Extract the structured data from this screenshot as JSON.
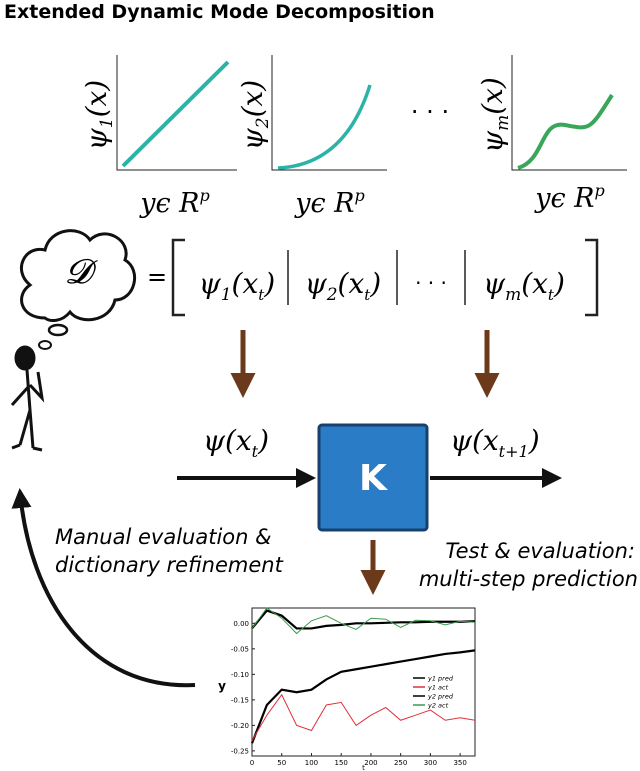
{
  "title": "Extended Dynamic Mode Decomposition",
  "basis_plots": [
    {
      "label": {
        "base": "ψ",
        "sub": "1",
        "arg": "(x)"
      },
      "xlabel": {
        "base": "yϵ R",
        "sup": "p"
      }
    },
    {
      "label": {
        "base": "ψ",
        "sub": "2",
        "arg": "(x)"
      },
      "xlabel": {
        "base": "yϵ R",
        "sup": "p"
      }
    },
    {
      "label": {
        "base": "ψ",
        "sub": "m",
        "arg": "(x)"
      },
      "xlabel": {
        "base": "yϵ R",
        "sup": "p"
      }
    }
  ],
  "ellipsis": "· · ·",
  "dictionary": {
    "symbol": "𝓓",
    "equals": "=",
    "entries": [
      {
        "base": "ψ",
        "sub": "1",
        "arg": "(x",
        "argsub": "t",
        "close": ")"
      },
      {
        "base": "ψ",
        "sub": "2",
        "arg": "(x",
        "argsub": "t",
        "close": ")"
      },
      {
        "base": "ψ",
        "sub": "m",
        "arg": "(x",
        "argsub": "t",
        "close": ")"
      }
    ],
    "ellipsis": "· · ·"
  },
  "input": {
    "base": "ψ(x",
    "sub": "t",
    "close": ")"
  },
  "operator": "K",
  "output": {
    "base": "ψ(x",
    "sub": "t+1",
    "close": ")"
  },
  "left_note": [
    "Manual evaluation &",
    "dictionary refinement"
  ],
  "right_note": [
    "Test & evaluation:",
    "multi-step prediction"
  ],
  "inset_chart": {
    "type": "line",
    "xlabel": "t",
    "ylabel": "y",
    "x": [
      0,
      25,
      50,
      75,
      100,
      125,
      150,
      175,
      200,
      225,
      250,
      275,
      300,
      325,
      350,
      375
    ],
    "series": [
      {
        "name": "y1 pred",
        "color": "#000000",
        "values": [
          -0.235,
          -0.16,
          -0.13,
          -0.135,
          -0.13,
          -0.11,
          -0.095,
          -0.09,
          -0.085,
          -0.08,
          -0.075,
          -0.07,
          -0.065,
          -0.06,
          -0.057,
          -0.053
        ]
      },
      {
        "name": "y1 act",
        "color": "#e0303a",
        "values": [
          -0.23,
          -0.18,
          -0.14,
          -0.2,
          -0.21,
          -0.16,
          -0.155,
          -0.2,
          -0.18,
          -0.165,
          -0.19,
          -0.18,
          -0.17,
          -0.19,
          -0.185,
          -0.19
        ]
      },
      {
        "name": "y2 pred",
        "color": "#000000",
        "values": [
          -0.01,
          0.025,
          0.015,
          -0.01,
          -0.01,
          -0.005,
          -0.003,
          0,
          0,
          0.001,
          0.002,
          0.002,
          0.003,
          0.003,
          0.003,
          0.004
        ]
      },
      {
        "name": "y2 act",
        "color": "#3a9a50",
        "values": [
          -0.01,
          0.03,
          0.01,
          -0.02,
          0.005,
          0.015,
          0,
          -0.012,
          0.01,
          0.008,
          -0.008,
          0.006,
          0.005,
          -0.003,
          0.004,
          0.002
        ]
      }
    ],
    "xlim": [
      0,
      375
    ],
    "xticks": [
      0,
      50,
      100,
      150,
      200,
      250,
      300,
      350
    ],
    "ylim": [
      -0.26,
      0.03
    ],
    "yticks": [
      {
        "value": 0,
        "label": "0.00"
      },
      -0.05,
      {
        "value": -0.1,
        "label": "-0.10"
      },
      -0.15,
      {
        "value": -0.2,
        "label": "-0.20"
      },
      -0.25
    ]
  }
}
